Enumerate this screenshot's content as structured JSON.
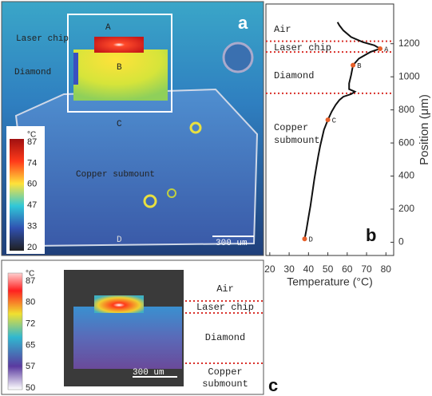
{
  "panel_a": {
    "label": "a",
    "colorbar": {
      "unit": "°C",
      "ticks": [
        87,
        74,
        60,
        47,
        33,
        20
      ]
    },
    "annotations": {
      "laser_chip": "Laser chip",
      "diamond": "Diamond",
      "copper": "Copper submount",
      "A": "A",
      "B": "B",
      "C": "C",
      "D": "D"
    },
    "scale_bar": "300 um"
  },
  "chart_data": {
    "type": "line",
    "label": "b",
    "xlabel": "Temperature (°C)",
    "ylabel": "Position (μm)",
    "xlim": [
      18,
      84
    ],
    "ylim": [
      -80,
      1440
    ],
    "xticks": [
      20,
      30,
      40,
      50,
      60,
      70,
      80
    ],
    "yticks": [
      0,
      200,
      400,
      600,
      800,
      1000,
      1200
    ],
    "series": [
      {
        "color": "#111111",
        "x": [
          38,
          39,
          40,
          41,
          42,
          43,
          44,
          45,
          46,
          47,
          48,
          50,
          52,
          54,
          56,
          58,
          62,
          64,
          61,
          61,
          62,
          63,
          66,
          72,
          77,
          74,
          68,
          62,
          58,
          56,
          55
        ],
        "values": [
          20,
          80,
          150,
          220,
          300,
          380,
          450,
          520,
          580,
          630,
          680,
          740,
          790,
          830,
          860,
          880,
          895,
          910,
          925,
          960,
          1010,
          1070,
          1110,
          1150,
          1170,
          1190,
          1210,
          1240,
          1280,
          1310,
          1330
        ]
      }
    ],
    "points": [
      {
        "label": "A",
        "x": 77,
        "y": 1170
      },
      {
        "label": "B",
        "x": 63,
        "y": 1070
      },
      {
        "label": "C",
        "x": 50,
        "y": 740
      },
      {
        "label": "D",
        "x": 38,
        "y": 20
      }
    ],
    "regions": [
      {
        "lines": [
          "Air"
        ]
      },
      {
        "lines": [
          "Laser chip"
        ]
      },
      {
        "lines": [
          "Diamond"
        ]
      },
      {
        "lines": [
          "Copper",
          "submount"
        ]
      }
    ],
    "boundaries": [
      1215,
      1150,
      900
    ],
    "boundary_color": "#d9302a"
  },
  "panel_c": {
    "label": "c",
    "colorbar": {
      "unit": "°C",
      "ticks": [
        87,
        80,
        72,
        65,
        57,
        50
      ]
    },
    "regions": [
      {
        "lines": [
          "Air"
        ]
      },
      {
        "lines": [
          "Laser chip"
        ]
      },
      {
        "lines": [
          "Diamond"
        ]
      },
      {
        "lines": [
          "Copper",
          "submount"
        ]
      }
    ],
    "scale_bar": "300 um"
  }
}
